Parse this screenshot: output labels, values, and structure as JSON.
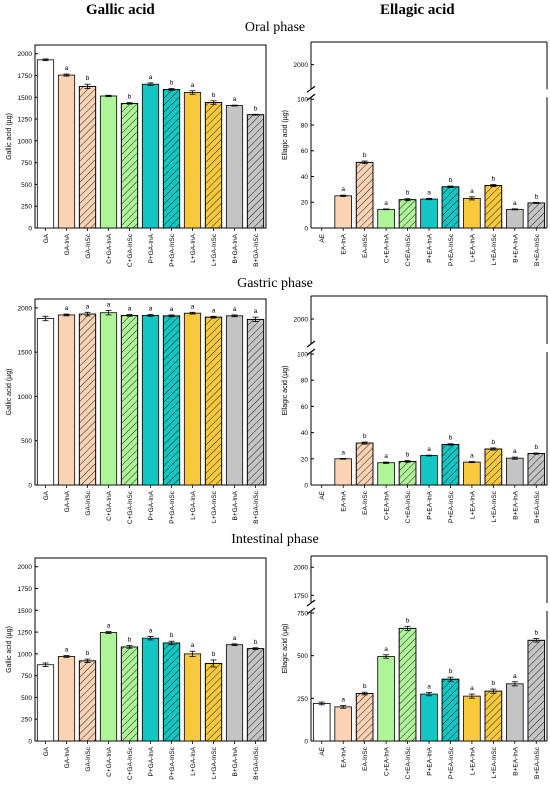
{
  "headers": {
    "left": "Gallic acid",
    "right": "Ellagic acid"
  },
  "phases": [
    "Oral phase",
    "Gastric phase",
    "Intestinal phase"
  ],
  "colors": {
    "white": "#ffffff",
    "peach": "#f9d3b4",
    "green": "#aef59a",
    "teal": "#12c6c3",
    "yellow": "#f8c93d",
    "grey": "#c4c4c4"
  },
  "chart_data": [
    {
      "type": "bar",
      "phase": "Oral phase",
      "compound": "Gallic acid",
      "ylabel": "Gallic acid (µg)",
      "ylim": [
        0,
        2100
      ],
      "yticks": [
        0,
        250,
        500,
        750,
        1000,
        1250,
        1500,
        1750,
        2000
      ],
      "categories": [
        "GA",
        "GA-InA",
        "GA-InSc",
        "C+GA-InA",
        "C+GA-InSc",
        "P+GA-InA",
        "P+GA-InSc",
        "L+GA-InA",
        "L+GA-InSc",
        "B+GA-InA",
        "B+GA-InSc"
      ],
      "values": [
        1930,
        1755,
        1625,
        1515,
        1430,
        1650,
        1590,
        1555,
        1440,
        1405,
        1300
      ],
      "errors": [
        10,
        12,
        25,
        8,
        8,
        15,
        12,
        20,
        20,
        5,
        5
      ],
      "labels": [
        "",
        "a",
        "b",
        "",
        "b",
        "a",
        "b",
        "a",
        "b",
        "a",
        "b"
      ]
    },
    {
      "type": "bar",
      "phase": "Oral phase",
      "compound": "Ellagic acid",
      "ylabel": "Ellagic acid (µg)",
      "axis_break": [
        100,
        1900
      ],
      "ylim": [
        0,
        2100
      ],
      "yticks": [
        0,
        20,
        40,
        60,
        80,
        100,
        2000
      ],
      "categories": [
        "AE",
        "EA-InA",
        "EA-InSc",
        "C+EA-InA",
        "C+EA-InSc",
        "P+EA-InA",
        "P+EA-InSc",
        "L+EA-InA",
        "L+EA-InSc",
        "B+EA-InA",
        "B+EA-InSc"
      ],
      "values": [
        0,
        25,
        51,
        14.5,
        22,
        22.5,
        32,
        23,
        33,
        14.5,
        19.5
      ],
      "errors": [
        0,
        0.5,
        1,
        0.3,
        0.8,
        0.5,
        0.6,
        1.2,
        0.8,
        0.4,
        0.4
      ],
      "labels": [
        "",
        "a",
        "b",
        "a",
        "b",
        "a",
        "b",
        "a",
        "b",
        "a",
        "b"
      ]
    },
    {
      "type": "bar",
      "phase": "Gastric phase",
      "compound": "Gallic acid",
      "ylabel": "Gallic acid (µg)",
      "ylim": [
        0,
        2100
      ],
      "yticks": [
        0,
        500,
        1000,
        1500,
        2000
      ],
      "categories": [
        "GA",
        "GA-InA",
        "GA-InSc",
        "C+GA-InA",
        "C+GA-InSc",
        "P+GA-InA",
        "P+GA-InSc",
        "L+GA-InA",
        "L+GA-InSc",
        "B+GA-InA",
        "B+GA-InSc"
      ],
      "values": [
        1880,
        1920,
        1930,
        1945,
        1915,
        1915,
        1910,
        1940,
        1895,
        1910,
        1870
      ],
      "errors": [
        25,
        10,
        20,
        25,
        10,
        10,
        10,
        10,
        10,
        10,
        25
      ],
      "labels": [
        "",
        "a",
        "a",
        "a",
        "a",
        "a",
        "a",
        "a",
        "a",
        "a",
        "a"
      ]
    },
    {
      "type": "bar",
      "phase": "Gastric phase",
      "compound": "Ellagic acid",
      "ylabel": "Ellagic acid (µg)",
      "axis_break": [
        100,
        1900
      ],
      "ylim": [
        0,
        2100
      ],
      "yticks": [
        0,
        20,
        40,
        60,
        80,
        100,
        2000
      ],
      "categories": [
        "AE",
        "EA-InA",
        "EA-InSc",
        "C+EA-InA",
        "C+EA-InSc",
        "P+EA-InA",
        "P+EA-InSc",
        "L+EA-InA",
        "L+EA-InSc",
        "B+EA-InA",
        "B+EA-InSc"
      ],
      "values": [
        0,
        20,
        32,
        17,
        18,
        22.5,
        31,
        17.5,
        27.5,
        20.5,
        24
      ],
      "errors": [
        0,
        0.3,
        0.8,
        0.5,
        0.6,
        0.3,
        0.5,
        0.4,
        0.8,
        0.8,
        0.4
      ],
      "labels": [
        "",
        "a",
        "b",
        "a",
        "b",
        "a",
        "b",
        "a",
        "b",
        "a",
        "b"
      ]
    },
    {
      "type": "bar",
      "phase": "Intestinal phase",
      "compound": "Gallic acid",
      "ylabel": "Gallic acid (µg)",
      "ylim": [
        0,
        2100
      ],
      "yticks": [
        0,
        250,
        500,
        750,
        1000,
        1250,
        1500,
        1750,
        2000
      ],
      "categories": [
        "GA",
        "GA-InA",
        "GA-InSc",
        "C+GA-InA",
        "C+GA-InSc",
        "P+GA-InA",
        "P+GA-InSc",
        "L+GA-InA",
        "L+GA-InSc",
        "B+GA-InA",
        "B+GA-InSc"
      ],
      "values": [
        875,
        970,
        920,
        1245,
        1080,
        1180,
        1125,
        1000,
        890,
        1105,
        1060
      ],
      "errors": [
        20,
        10,
        20,
        10,
        15,
        20,
        20,
        30,
        40,
        10,
        10
      ],
      "labels": [
        "",
        "a",
        "b",
        "a",
        "b",
        "a",
        "b",
        "a",
        "b",
        "a",
        "b"
      ]
    },
    {
      "type": "bar",
      "phase": "Intestinal phase",
      "compound": "Ellagic acid",
      "ylabel": "Ellagic acid (µg)",
      "axis_break": [
        750,
        1700
      ],
      "ylim": [
        0,
        2100
      ],
      "yticks": [
        0,
        250,
        500,
        750,
        1750,
        2000
      ],
      "categories": [
        "AE",
        "EA-InA",
        "EA-InSc",
        "C+EA-InA",
        "C+EA-InSc",
        "P+EA-InA",
        "P+EA-InSc",
        "L+EA-InA",
        "L+EA-InSc",
        "B+EA-InA",
        "B+EA-InSc"
      ],
      "values": [
        220,
        200,
        278,
        495,
        660,
        275,
        362,
        263,
        292,
        335,
        590
      ],
      "errors": [
        8,
        8,
        8,
        10,
        12,
        10,
        12,
        12,
        12,
        12,
        10
      ],
      "labels": [
        "",
        "a",
        "b",
        "a",
        "b",
        "a",
        "b",
        "a",
        "b",
        "a",
        "b"
      ]
    }
  ]
}
